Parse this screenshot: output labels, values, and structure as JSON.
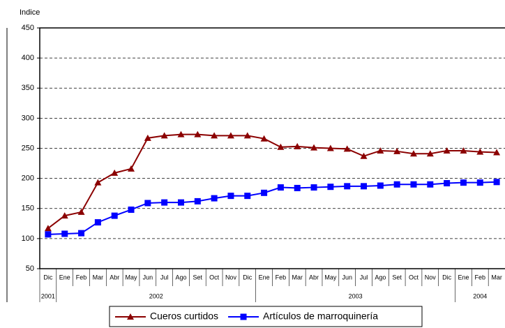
{
  "chart_data": {
    "type": "line",
    "y_label": "Indice",
    "categories": [
      "Dic",
      "Ene",
      "Feb",
      "Mar",
      "Abr",
      "May",
      "Jun",
      "Jul",
      "Ago",
      "Set",
      "Oct",
      "Nov",
      "Dic",
      "Ene",
      "Feb",
      "Mar",
      "Abr",
      "May",
      "Jun",
      "Jul",
      "Ago",
      "Set",
      "Oct",
      "Nov",
      "Dic",
      "Ene",
      "Feb",
      "Mar"
    ],
    "years": [
      {
        "label": "2001",
        "start": 0,
        "end": 0
      },
      {
        "label": "2002",
        "start": 1,
        "end": 12
      },
      {
        "label": "2003",
        "start": 13,
        "end": 24
      },
      {
        "label": "2004",
        "start": 25,
        "end": 27
      }
    ],
    "series": [
      {
        "name": "Cueros curtidos",
        "color": "#8b0000",
        "marker": "triangle",
        "values": [
          117,
          138,
          144,
          193,
          209,
          216,
          267,
          271,
          273,
          273,
          271,
          271,
          271,
          266,
          252,
          253,
          251,
          250,
          249,
          237,
          246,
          245,
          241,
          241,
          246,
          246,
          244,
          243
        ]
      },
      {
        "name": "Artículos de marroquinería",
        "color": "#0000ff",
        "marker": "square",
        "values": [
          107,
          108,
          109,
          127,
          138,
          148,
          159,
          160,
          160,
          162,
          167,
          171,
          171,
          176,
          185,
          184,
          185,
          186,
          187,
          187,
          188,
          190,
          190,
          190,
          192,
          193,
          193,
          194
        ]
      }
    ],
    "ylim": [
      50,
      450
    ],
    "yticks": [
      50,
      100,
      150,
      200,
      250,
      300,
      350,
      400,
      450
    ],
    "grid": true,
    "legend": "bottom"
  }
}
